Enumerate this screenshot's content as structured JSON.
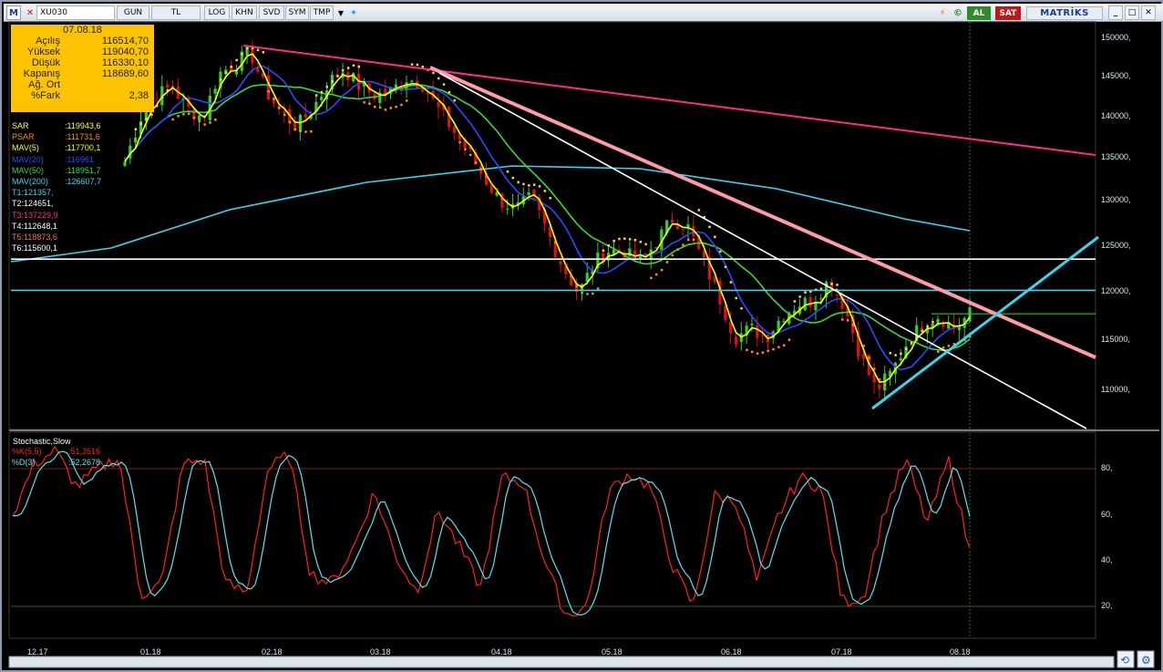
{
  "toolbar": {
    "menu_label": "M",
    "symbol": "XU030",
    "buttons": [
      "GUN",
      "TL",
      "LOG",
      "KHN",
      "SVD",
      "SYM",
      "TMP"
    ],
    "buy_label": "AL",
    "sell_label": "SAT",
    "brand": "MATRİKS"
  },
  "info": {
    "date": "07.08.18",
    "rows": [
      {
        "label": "Açılış",
        "value": "116514,70"
      },
      {
        "label": "Yüksek",
        "value": "119040,70"
      },
      {
        "label": "Düşük",
        "value": "116330,10"
      },
      {
        "label": "Kapanış",
        "value": "118689,60"
      },
      {
        "label": "Ağ. Ort",
        "value": ""
      },
      {
        "label": "%Fark",
        "value": "2,38"
      }
    ]
  },
  "indicators": [
    {
      "label": "SAR",
      "value": ":119943,6",
      "color": "#ffff40"
    },
    {
      "label": "PSAR",
      "value": ":111731,6",
      "color": "#ff8c1a"
    },
    {
      "label": "MAV(5)",
      "value": ":117700,1",
      "color": "#ffff00"
    },
    {
      "label": "MAV(20)",
      "value": ":116961",
      "color": "#2b4bff"
    },
    {
      "label": "MAV(50)",
      "value": ":118951,7",
      "color": "#39d739"
    },
    {
      "label": "MAV(200)",
      "value": ":126607,7",
      "color": "#35d6ef"
    },
    {
      "label": "T1",
      "value": ":121357,",
      "color": "#35d6ef"
    },
    {
      "label": "T2",
      "value": ":124651,",
      "color": "#ffffff"
    },
    {
      "label": "T3",
      "value": ":137229,9",
      "color": "#ff2b8a"
    },
    {
      "label": "T4",
      "value": ":112648,1",
      "color": "#ffffff"
    },
    {
      "label": "T5",
      "value": ":118873,6",
      "color": "#ff6666"
    },
    {
      "label": "T6",
      "value": ":115600,1",
      "color": "#ffffff"
    }
  ],
  "price_axis": [
    "150000,",
    "145000,",
    "140000,",
    "135000,",
    "130000,",
    "125000,",
    "120000,",
    "115000,",
    "110000,"
  ],
  "stoch": {
    "title": "Stochastic,Slow",
    "k_label": "%K(5,5)",
    "k_value": ":51,3516",
    "k_color": "#ff2020",
    "d_label": "%D(3)",
    "d_value": ":52,2678",
    "d_color": "#5fe0ee",
    "axis": [
      "80,",
      "60,",
      "40,",
      "20,"
    ],
    "levels": [
      80,
      20
    ]
  },
  "date_axis": [
    "12.17",
    "01.18",
    "02.18",
    "03.18",
    "04.18",
    "05.18",
    "06.18",
    "07.18",
    "08.18"
  ],
  "chart_data": {
    "type": "candlestick",
    "symbol": "XU030",
    "ylim": [
      106000,
      152000
    ],
    "close_approx": [
      136000,
      141000,
      143500,
      144500,
      142000,
      141000,
      146000,
      147000,
      148500,
      144000,
      141500,
      140000,
      142000,
      145000,
      146500,
      144500,
      143500,
      144000,
      145500,
      144800,
      142000,
      139500,
      137000,
      134000,
      131500,
      130500,
      132000,
      128000,
      124000,
      121000,
      124500,
      126000,
      125500,
      124500,
      127000,
      129500,
      128500,
      124500,
      120500,
      116000,
      117000,
      116000,
      118500,
      119800,
      120200,
      122500,
      119500,
      114000,
      110000,
      112000,
      115500,
      117500,
      118500,
      117000,
      118700
    ],
    "horizontal_levels": [
      124900,
      121357
    ],
    "stoch_k_approx": [
      60,
      82,
      88,
      72,
      80,
      85,
      25,
      30,
      82,
      84,
      30,
      26,
      80,
      86,
      34,
      30,
      45,
      70,
      42,
      26,
      62,
      46,
      28,
      76,
      74,
      40,
      16,
      20,
      70,
      78,
      72,
      38,
      20,
      68,
      66,
      30,
      60,
      76,
      72,
      22,
      24,
      62,
      84,
      56,
      84,
      44
    ]
  }
}
